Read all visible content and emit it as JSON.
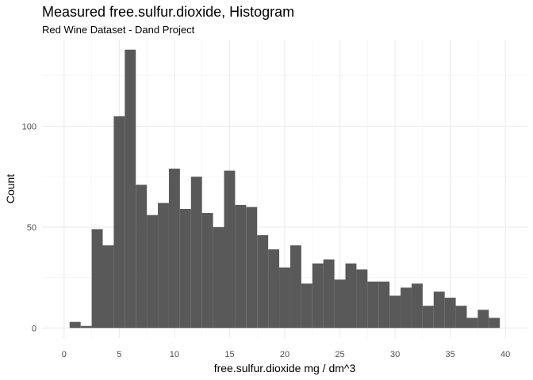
{
  "chart_data": {
    "type": "bar",
    "title": "Measured free.sulfur.dioxide, Histogram",
    "subtitle": "Red Wine Dataset - Dand Project",
    "xlabel": "free.sulfur.dioxide mg / dm^3",
    "ylabel": "Count",
    "xlim": [
      -2,
      42
    ],
    "ylim": [
      -5,
      143
    ],
    "x_ticks": [
      0,
      5,
      10,
      15,
      20,
      25,
      30,
      35,
      40
    ],
    "y_ticks": [
      0,
      50,
      100
    ],
    "bin_width": 1,
    "bins": [
      {
        "x": 1,
        "count": 3
      },
      {
        "x": 2,
        "count": 1
      },
      {
        "x": 3,
        "count": 49
      },
      {
        "x": 4,
        "count": 41
      },
      {
        "x": 5,
        "count": 105
      },
      {
        "x": 6,
        "count": 138
      },
      {
        "x": 7,
        "count": 71
      },
      {
        "x": 8,
        "count": 56
      },
      {
        "x": 9,
        "count": 62
      },
      {
        "x": 10,
        "count": 79
      },
      {
        "x": 11,
        "count": 59
      },
      {
        "x": 12,
        "count": 75
      },
      {
        "x": 13,
        "count": 57
      },
      {
        "x": 14,
        "count": 50
      },
      {
        "x": 15,
        "count": 78
      },
      {
        "x": 16,
        "count": 61
      },
      {
        "x": 17,
        "count": 60
      },
      {
        "x": 18,
        "count": 46
      },
      {
        "x": 19,
        "count": 39
      },
      {
        "x": 20,
        "count": 30
      },
      {
        "x": 21,
        "count": 41
      },
      {
        "x": 22,
        "count": 22
      },
      {
        "x": 23,
        "count": 32
      },
      {
        "x": 24,
        "count": 34
      },
      {
        "x": 25,
        "count": 24
      },
      {
        "x": 26,
        "count": 32
      },
      {
        "x": 27,
        "count": 29
      },
      {
        "x": 28,
        "count": 23
      },
      {
        "x": 29,
        "count": 23
      },
      {
        "x": 30,
        "count": 16
      },
      {
        "x": 31,
        "count": 20
      },
      {
        "x": 32,
        "count": 22
      },
      {
        "x": 33,
        "count": 11
      },
      {
        "x": 34,
        "count": 18
      },
      {
        "x": 35,
        "count": 15
      },
      {
        "x": 36,
        "count": 11
      },
      {
        "x": 37,
        "count": 5
      },
      {
        "x": 38,
        "count": 9
      },
      {
        "x": 39,
        "count": 5
      }
    ],
    "bar_color": "#595959",
    "grid": true,
    "legend": "none"
  }
}
